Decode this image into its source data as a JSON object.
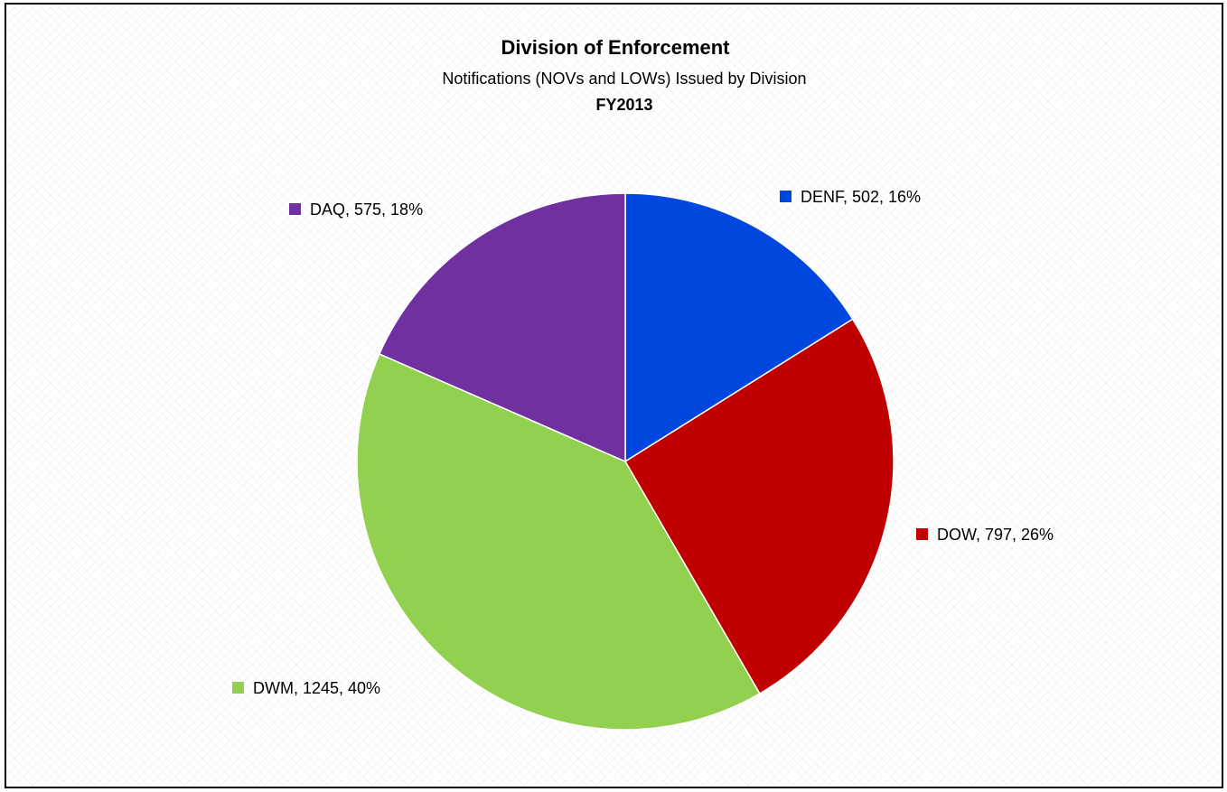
{
  "chart_data": {
    "type": "pie",
    "title": "Division of Enforcement",
    "subtitle": "Notifications (NOVs and LOWs) Issued by Division",
    "subtitle2": "FY2013",
    "slices": [
      {
        "label": "DENF",
        "value": 502,
        "percent": "16%",
        "color": "#0047e0"
      },
      {
        "label": "DOW",
        "value": 797,
        "percent": "26%",
        "color": "#c00000"
      },
      {
        "label": "DWM",
        "value": 1245,
        "percent": "40%",
        "color": "#92d050"
      },
      {
        "label": "DAQ",
        "value": 575,
        "percent": "18%",
        "color": "#7030a0"
      }
    ],
    "data_labels": [
      "DENF, 502, 16%",
      "DOW, 797, 26%",
      "DWM, 1245, 40%",
      "DAQ, 575, 18%"
    ],
    "start_angle_deg": 0,
    "direction": "clockwise",
    "legend": "none",
    "border_color": "#000000"
  }
}
